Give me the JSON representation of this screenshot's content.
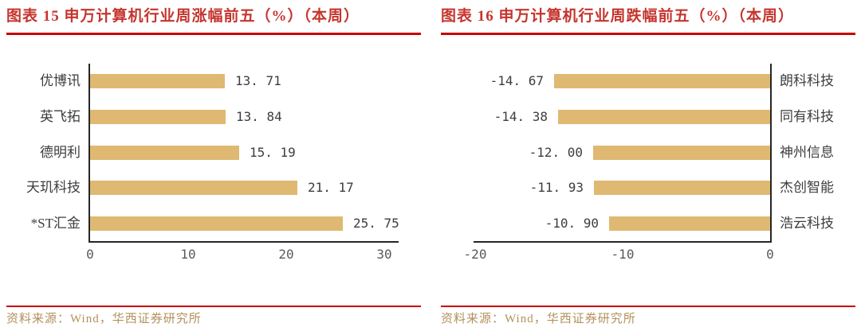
{
  "panels": [
    {
      "title": "图表 15 申万计算机行业周涨幅前五（%）（本周）",
      "source": "资料来源：Wind，华西证券研究所"
    },
    {
      "title": "图表 16 申万计算机行业周跌幅前五（%）（本周）",
      "source": "资料来源：Wind，华西证券研究所"
    }
  ],
  "chart_data": [
    {
      "type": "bar",
      "orientation": "horizontal",
      "title": "图表 15 申万计算机行业周涨幅前五（%）（本周）",
      "categories": [
        "优博讯",
        "英飞拓",
        "德明利",
        "天玑科技",
        "*ST汇金"
      ],
      "values": [
        13.71,
        13.84,
        15.19,
        21.17,
        25.75
      ],
      "value_labels": [
        "13. 71",
        "13. 84",
        "15. 19",
        "21. 17",
        "25. 75"
      ],
      "xlabel": "",
      "ylabel": "",
      "xlim": [
        0,
        30
      ],
      "xticks": [
        0,
        10,
        20,
        30
      ],
      "xtick_labels": [
        "0",
        "10",
        "20",
        "30"
      ],
      "unit": "%",
      "grid": false,
      "legend": false
    },
    {
      "type": "bar",
      "orientation": "horizontal",
      "title": "图表 16 申万计算机行业周跌幅前五（%）（本周）",
      "categories": [
        "朗科科技",
        "同有科技",
        "神州信息",
        "杰创智能",
        "浩云科技"
      ],
      "values": [
        -14.67,
        -14.38,
        -12.0,
        -11.93,
        -10.9
      ],
      "value_labels": [
        "-14. 67",
        "-14. 38",
        "-12. 00",
        "-11. 93",
        "-10. 90"
      ],
      "xlabel": "",
      "ylabel": "",
      "xlim": [
        -20,
        0
      ],
      "xticks": [
        -20,
        -10,
        0
      ],
      "xtick_labels": [
        "-20",
        "-10",
        "0"
      ],
      "unit": "%",
      "grid": false,
      "legend": false
    }
  ],
  "colors": {
    "title_red": "#C5352E",
    "rule_red": "#C80000",
    "bar_gold": "#DFB972",
    "source_gold": "#B3905C",
    "axis": "#262626",
    "value_label": "#3D3D3D",
    "tick_label": "#595959"
  }
}
